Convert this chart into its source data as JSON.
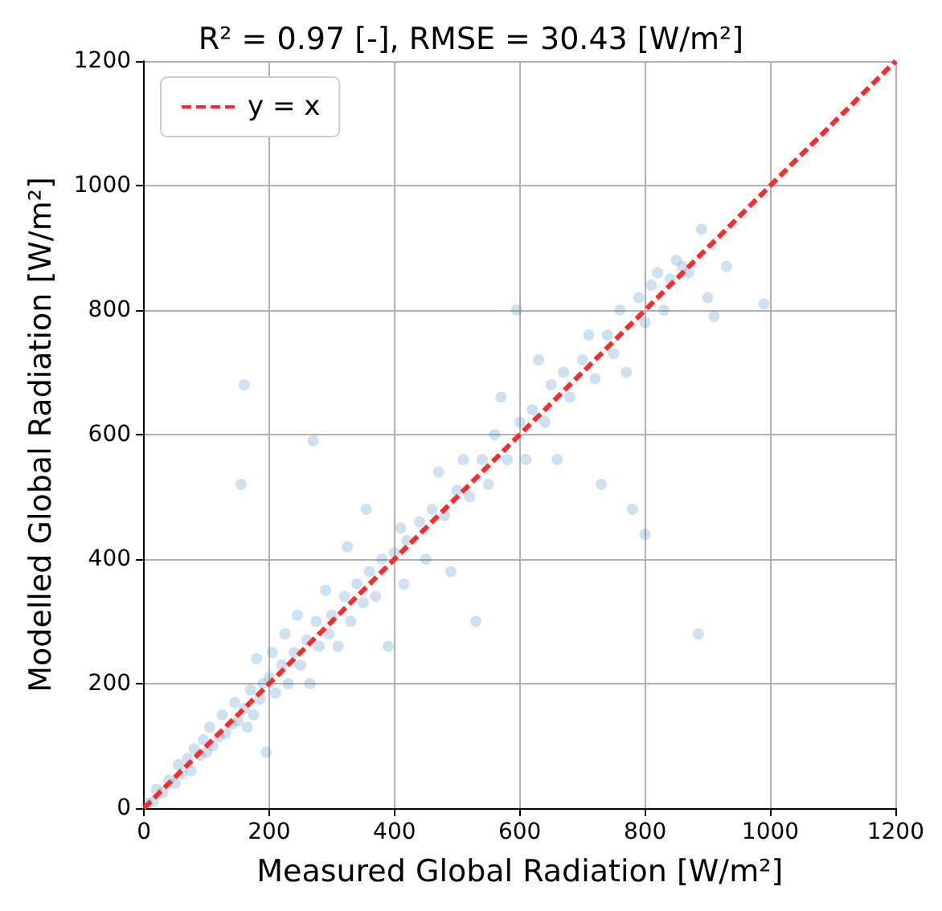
{
  "chart_data": {
    "type": "scatter",
    "title": "R² = 0.97 [-], RMSE = 30.43 [W/m²]",
    "xlabel": "Measured Global Radiation [W/m²]",
    "ylabel": "Modelled Global Radiation [W/m²]",
    "xlim": [
      0,
      1200
    ],
    "ylim": [
      0,
      1200
    ],
    "xticks": [
      0,
      200,
      400,
      600,
      800,
      1000,
      1200
    ],
    "yticks": [
      0,
      200,
      400,
      600,
      800,
      1000,
      1200
    ],
    "grid": true,
    "legend": "top left",
    "marker": "circle",
    "series": [
      {
        "color": "#1f77b4",
        "x": [
          5,
          15,
          20,
          30,
          40,
          50,
          55,
          60,
          70,
          75,
          80,
          90,
          95,
          100,
          105,
          110,
          120,
          125,
          130,
          140,
          145,
          150,
          155,
          160,
          160,
          165,
          170,
          175,
          180,
          185,
          190,
          195,
          200,
          205,
          210,
          220,
          225,
          230,
          240,
          245,
          250,
          260,
          265,
          270,
          275,
          280,
          290,
          295,
          300,
          310,
          320,
          325,
          330,
          340,
          350,
          355,
          360,
          370,
          380,
          390,
          400,
          410,
          415,
          420,
          440,
          450,
          460,
          470,
          480,
          490,
          500,
          510,
          520,
          530,
          540,
          550,
          560,
          570,
          580,
          595,
          600,
          610,
          620,
          630,
          640,
          650,
          660,
          670,
          680,
          700,
          710,
          720,
          730,
          740,
          750,
          760,
          770,
          780,
          790,
          800,
          800,
          810,
          820,
          830,
          840,
          850,
          860,
          870,
          885,
          890,
          900,
          910,
          930,
          990
        ],
        "values": [
          8,
          10,
          30,
          25,
          45,
          40,
          70,
          55,
          80,
          60,
          95,
          85,
          110,
          90,
          130,
          100,
          115,
          150,
          120,
          135,
          170,
          140,
          520,
          680,
          160,
          130,
          190,
          150,
          240,
          175,
          200,
          90,
          210,
          250,
          185,
          230,
          280,
          200,
          250,
          310,
          230,
          270,
          200,
          590,
          300,
          260,
          350,
          280,
          310,
          260,
          340,
          420,
          300,
          360,
          330,
          480,
          380,
          340,
          400,
          260,
          410,
          450,
          360,
          430,
          460,
          400,
          480,
          540,
          470,
          380,
          510,
          560,
          500,
          300,
          560,
          520,
          600,
          660,
          560,
          800,
          620,
          560,
          640,
          720,
          620,
          680,
          560,
          700,
          660,
          720,
          760,
          690,
          520,
          760,
          730,
          800,
          700,
          480,
          820,
          440,
          780,
          840,
          860,
          800,
          850,
          880,
          870,
          860,
          280,
          930,
          820,
          790,
          870,
          810
        ]
      },
      {
        "type": "line",
        "name": "y = x",
        "color": "#ff2a2a",
        "line_style": "dashed",
        "marker": "none",
        "x": [
          0,
          1200
        ],
        "values": [
          0,
          1200
        ]
      }
    ]
  }
}
